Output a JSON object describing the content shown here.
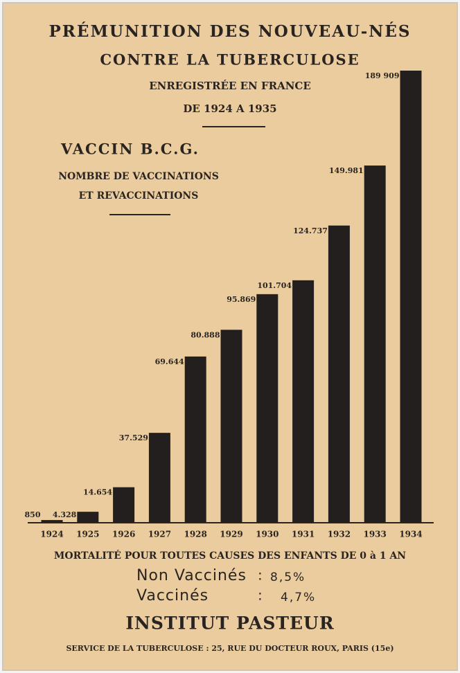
{
  "header": {
    "lines": [
      "PRÉMUNITION DES NOUVEAU-NÉS",
      "CONTRE LA TUBERCULOSE",
      "ENREGISTRÉE EN FRANCE",
      "DE 1924 A 1935"
    ],
    "vaccine": "VACCIN B.C.G.",
    "measure": [
      "NOMBRE DE VACCINATIONS",
      "ET REVACCINATIONS"
    ]
  },
  "chart_data": {
    "type": "bar",
    "categories": [
      "1924",
      "1925",
      "1926",
      "1927",
      "1928",
      "1929",
      "1930",
      "1931",
      "1932",
      "1933",
      "1934"
    ],
    "values": [
      850,
      4328,
      14654,
      37529,
      69644,
      80888,
      95869,
      101704,
      124737,
      149981,
      189909
    ],
    "value_labels": [
      "850",
      "4.328",
      "14.654",
      "37.529",
      "69.644",
      "80.888",
      "95.869",
      "101.704",
      "124.737",
      "149.981",
      "189 909"
    ],
    "color": "#231f1e"
  },
  "footer": {
    "mortality": "MORTALITÉ POUR TOUTES CAUSES DES ENFANTS DE 0 à 1 AN",
    "separator": ":",
    "rows": [
      {
        "label": "Non Vaccinés",
        "value": "8,5%"
      },
      {
        "label": "Vaccinés",
        "value": "4,7%"
      }
    ],
    "institute": "INSTITUT PASTEUR",
    "address": "SERVICE DE LA TUBERCULOSE : 25, RUE DU DOCTEUR ROUX, PARIS (15e)"
  }
}
